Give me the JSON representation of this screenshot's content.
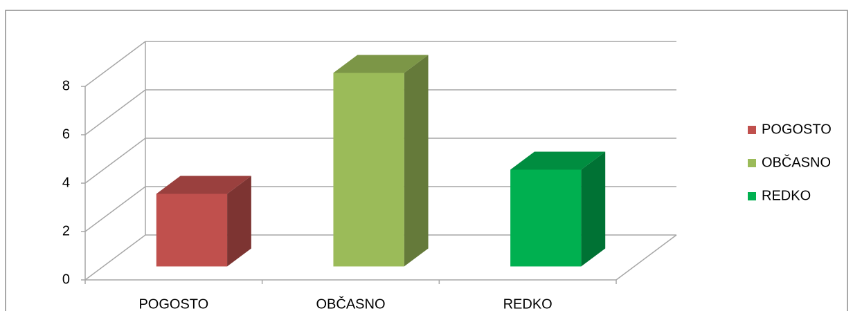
{
  "chart_data": {
    "type": "bar3d",
    "categories": [
      "POGOSTO",
      "OBČASNO",
      "REDKO"
    ],
    "values": [
      3,
      8,
      4
    ],
    "colors": [
      "#c0504d",
      "#9bbb59",
      "#00b050"
    ],
    "ylim": [
      0,
      8
    ],
    "yticks": [
      0,
      2,
      4,
      6,
      8
    ],
    "grid": true,
    "legend": "right"
  }
}
